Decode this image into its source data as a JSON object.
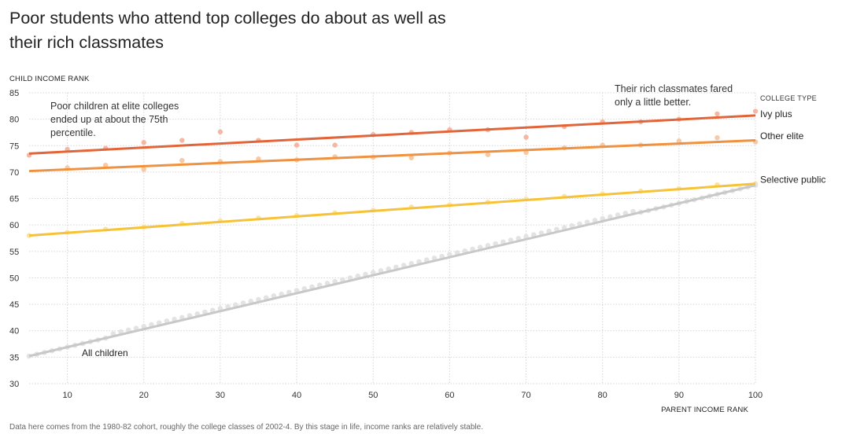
{
  "title": "Poor students who attend top colleges do about as well as their rich classmates",
  "note": "Data here comes from the 1980-82 cohort, roughly the college classes of 2002-4. By this stage in life, income ranks are relatively stable.",
  "annotations": {
    "poor": [
      "Poor children at elite colleges",
      "ended up at about the 75th",
      "percentile."
    ],
    "rich": [
      "Their rich classmates fared",
      "only a little better."
    ]
  },
  "chart_data": {
    "type": "scatter",
    "title": "Poor students who attend top colleges do about as well as their rich classmates",
    "xlabel": "PARENT INCOME RANK",
    "ylabel": "CHILD INCOME RANK",
    "xlim": [
      5,
      100
    ],
    "ylim": [
      30,
      85
    ],
    "xticks": [
      10,
      20,
      30,
      40,
      50,
      60,
      70,
      80,
      90,
      100
    ],
    "yticks": [
      30,
      35,
      40,
      45,
      50,
      55,
      60,
      65,
      70,
      75,
      80,
      85
    ],
    "grid": true,
    "legend_title": "COLLEGE TYPE",
    "legend_placement": "right, labels at line ends",
    "series": [
      {
        "name": "Ivy plus",
        "color": "#e2653a",
        "dot_color": "#f4b8a2",
        "fit": [
          [
            5,
            73.5
          ],
          [
            100,
            80.7
          ]
        ],
        "points": [
          [
            5,
            73.2
          ],
          [
            10,
            74.3
          ],
          [
            15,
            74.5
          ],
          [
            20,
            75.6
          ],
          [
            25,
            76
          ],
          [
            30,
            77.6
          ],
          [
            35,
            76
          ],
          [
            40,
            75.1
          ],
          [
            45,
            75.1
          ],
          [
            50,
            77.1
          ],
          [
            55,
            77.5
          ],
          [
            60,
            78
          ],
          [
            65,
            78
          ],
          [
            70,
            76.6
          ],
          [
            75,
            78.6
          ],
          [
            80,
            79.5
          ],
          [
            85,
            79.5
          ],
          [
            90,
            80
          ],
          [
            95,
            81
          ],
          [
            100,
            81.5
          ]
        ]
      },
      {
        "name": "Other elite",
        "color": "#f0913f",
        "dot_color": "#f8c9a3",
        "fit": [
          [
            5,
            70.2
          ],
          [
            100,
            76
          ]
        ],
        "points": [
          [
            10,
            70.8
          ],
          [
            15,
            71.3
          ],
          [
            20,
            70.5
          ],
          [
            25,
            72.2
          ],
          [
            30,
            72
          ],
          [
            35,
            72.5
          ],
          [
            40,
            72.3
          ],
          [
            45,
            72.9
          ],
          [
            50,
            72.8
          ],
          [
            55,
            72.7
          ],
          [
            60,
            73.6
          ],
          [
            65,
            73.3
          ],
          [
            70,
            73.7
          ],
          [
            75,
            74.6
          ],
          [
            80,
            75.1
          ],
          [
            85,
            75.1
          ],
          [
            90,
            75.9
          ],
          [
            95,
            76.5
          ],
          [
            100,
            75.7
          ]
        ]
      },
      {
        "name": "Selective public",
        "color": "#f7c237",
        "dot_color": "#fbe3a0",
        "fit": [
          [
            5,
            58
          ],
          [
            100,
            67.8
          ]
        ],
        "points": [
          [
            5,
            58
          ],
          [
            10,
            58.6
          ],
          [
            15,
            59.2
          ],
          [
            20,
            59.6
          ],
          [
            25,
            60.3
          ],
          [
            30,
            60.8
          ],
          [
            35,
            61.3
          ],
          [
            40,
            61.8
          ],
          [
            45,
            62.3
          ],
          [
            50,
            62.8
          ],
          [
            55,
            63.4
          ],
          [
            60,
            63.8
          ],
          [
            65,
            64.3
          ],
          [
            70,
            64.9
          ],
          [
            75,
            65.4
          ],
          [
            80,
            65.9
          ],
          [
            85,
            66.4
          ],
          [
            90,
            66.9
          ],
          [
            95,
            67.6
          ],
          [
            100,
            67.8
          ]
        ]
      },
      {
        "name": "All children",
        "color": "#c8c8c8",
        "dot_color": "#e3e3e3",
        "fit": [
          [
            5,
            35.2
          ],
          [
            100,
            67.5
          ]
        ],
        "points": "dense percentile dots along the trend line"
      }
    ]
  }
}
